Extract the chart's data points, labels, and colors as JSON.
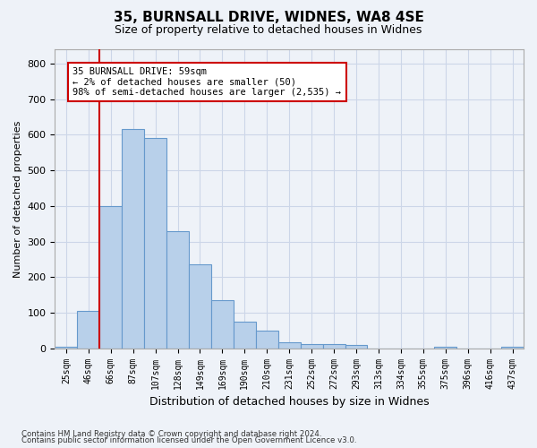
{
  "title1": "35, BURNSALL DRIVE, WIDNES, WA8 4SE",
  "title2": "Size of property relative to detached houses in Widnes",
  "xlabel": "Distribution of detached houses by size in Widnes",
  "ylabel": "Number of detached properties",
  "bar_values": [
    5,
    105,
    400,
    615,
    590,
    328,
    235,
    135,
    75,
    50,
    18,
    13,
    13,
    10,
    0,
    0,
    0,
    5,
    0,
    0,
    5
  ],
  "bar_labels": [
    "25sqm",
    "46sqm",
    "66sqm",
    "87sqm",
    "107sqm",
    "128sqm",
    "149sqm",
    "169sqm",
    "190sqm",
    "210sqm",
    "231sqm",
    "252sqm",
    "272sqm",
    "293sqm",
    "313sqm",
    "334sqm",
    "355sqm",
    "375sqm",
    "396sqm",
    "416sqm",
    "437sqm"
  ],
  "bar_color": "#b8d0ea",
  "bar_edge_color": "#6699cc",
  "grid_color": "#ccd6e8",
  "background_color": "#eef2f8",
  "vline_x": 1.5,
  "vline_color": "#cc0000",
  "annotation_text": "35 BURNSALL DRIVE: 59sqm\n← 2% of detached houses are smaller (50)\n98% of semi-detached houses are larger (2,535) →",
  "annotation_box_facecolor": "#ffffff",
  "annotation_box_edge": "#cc0000",
  "ylim": [
    0,
    840
  ],
  "yticks": [
    0,
    100,
    200,
    300,
    400,
    500,
    600,
    700,
    800
  ],
  "footer1": "Contains HM Land Registry data © Crown copyright and database right 2024.",
  "footer2": "Contains public sector information licensed under the Open Government Licence v3.0."
}
